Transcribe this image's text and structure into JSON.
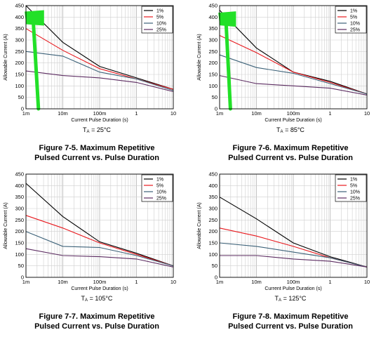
{
  "series_colors": [
    "#000000",
    "#e8191e",
    "#3c6178",
    "#5c2c61"
  ],
  "highlight_color": "#22e028",
  "chart_data": [
    {
      "type": "line",
      "caption_line1": "Figure 7-5. Maximum Repetitive",
      "caption_line2": "Pulsed Current vs. Pulse Duration",
      "condition_prefix": "T",
      "condition_sub": "A",
      "condition_value": " = 25°C",
      "xlabel": "Current Pulse Duration (s)",
      "ylabel": "Allowable Current (A)",
      "x_scale": "log",
      "xlim": [
        0.001,
        10
      ],
      "ylim": [
        0,
        450
      ],
      "x_ticks": [
        {
          "v": 0.001,
          "label": "1m"
        },
        {
          "v": 0.01,
          "label": "10m"
        },
        {
          "v": 0.1,
          "label": "100m"
        },
        {
          "v": 1,
          "label": "1"
        },
        {
          "v": 10,
          "label": "10"
        }
      ],
      "y_ticks": [
        "0",
        "50",
        "100",
        "150",
        "200",
        "250",
        "300",
        "350",
        "400",
        "450"
      ],
      "legend": {
        "placement": "top-right"
      },
      "grid": true,
      "highlight": {
        "description": "green marker stroke",
        "x": [
          0.0012,
          0.002
        ],
        "y": [
          0,
          430
        ]
      },
      "series": [
        {
          "name": "1%",
          "points": [
            [
              0.001,
              450
            ],
            [
              0.01,
              290
            ],
            [
              0.1,
              185
            ],
            [
              1,
              135
            ],
            [
              10,
              85
            ]
          ]
        },
        {
          "name": "5%",
          "points": [
            [
              0.001,
              350
            ],
            [
              0.01,
              255
            ],
            [
              0.1,
              175
            ],
            [
              1,
              130
            ],
            [
              10,
              85
            ]
          ]
        },
        {
          "name": "10%",
          "points": [
            [
              0.001,
              250
            ],
            [
              0.01,
              230
            ],
            [
              0.1,
              160
            ],
            [
              1,
              130
            ],
            [
              10,
              80
            ]
          ]
        },
        {
          "name": "25%",
          "points": [
            [
              0.001,
              165
            ],
            [
              0.01,
              145
            ],
            [
              0.1,
              135
            ],
            [
              1,
              115
            ],
            [
              10,
              75
            ]
          ]
        }
      ]
    },
    {
      "type": "line",
      "caption_line1": "Figure 7-6. Maximum Repetitive",
      "caption_line2": "Pulsed Current vs. Pulse Duration",
      "condition_prefix": "T",
      "condition_sub": "A",
      "condition_value": " = 85°C",
      "xlabel": "Current Pulse Duration (s)",
      "ylabel": "Allowable Current (A)",
      "x_scale": "log",
      "xlim": [
        0.001,
        10
      ],
      "ylim": [
        0,
        450
      ],
      "x_ticks": [
        {
          "v": 0.001,
          "label": "1m"
        },
        {
          "v": 0.01,
          "label": "10m"
        },
        {
          "v": 0.1,
          "label": "100m"
        },
        {
          "v": 1,
          "label": "1"
        },
        {
          "v": 10,
          "label": "10"
        }
      ],
      "y_ticks": [
        "0",
        "50",
        "100",
        "150",
        "200",
        "250",
        "300",
        "350",
        "400",
        "450"
      ],
      "legend": {
        "placement": "top-right"
      },
      "grid": true,
      "highlight": {
        "description": "green marker stroke",
        "x": [
          0.0012,
          0.0018
        ],
        "y": [
          0,
          425
        ]
      },
      "series": [
        {
          "name": "1%",
          "points": [
            [
              0.001,
              430
            ],
            [
              0.01,
              265
            ],
            [
              0.1,
              160
            ],
            [
              1,
              120
            ],
            [
              10,
              65
            ]
          ]
        },
        {
          "name": "5%",
          "points": [
            [
              0.001,
              320
            ],
            [
              0.01,
              245
            ],
            [
              0.1,
              160
            ],
            [
              1,
              115
            ],
            [
              10,
              65
            ]
          ]
        },
        {
          "name": "10%",
          "points": [
            [
              0.001,
              235
            ],
            [
              0.01,
              180
            ],
            [
              0.1,
              155
            ],
            [
              1,
              110
            ],
            [
              10,
              65
            ]
          ]
        },
        {
          "name": "25%",
          "points": [
            [
              0.001,
              145
            ],
            [
              0.01,
              110
            ],
            [
              0.1,
              100
            ],
            [
              1,
              90
            ],
            [
              10,
              60
            ]
          ]
        }
      ]
    },
    {
      "type": "line",
      "caption_line1": "Figure 7-7. Maximum Repetitive",
      "caption_line2": "Pulsed Current vs. Pulse Duration",
      "condition_prefix": "T",
      "condition_sub": "A",
      "condition_value": " = 105°C",
      "xlabel": "Current Pulse Duration (s)",
      "ylabel": "Allowable Current (A)",
      "x_scale": "log",
      "xlim": [
        0.001,
        10
      ],
      "ylim": [
        0,
        450
      ],
      "x_ticks": [
        {
          "v": 0.001,
          "label": "1m"
        },
        {
          "v": 0.01,
          "label": "10m"
        },
        {
          "v": 0.1,
          "label": "100m"
        },
        {
          "v": 1,
          "label": "1"
        },
        {
          "v": 10,
          "label": "10"
        }
      ],
      "y_ticks": [
        "0",
        "50",
        "100",
        "150",
        "200",
        "250",
        "300",
        "350",
        "400",
        "450"
      ],
      "legend": {
        "placement": "top-right"
      },
      "grid": true,
      "series": [
        {
          "name": "1%",
          "points": [
            [
              0.001,
              410
            ],
            [
              0.01,
              265
            ],
            [
              0.1,
              155
            ],
            [
              1,
              105
            ],
            [
              10,
              50
            ]
          ]
        },
        {
          "name": "5%",
          "points": [
            [
              0.001,
              270
            ],
            [
              0.01,
              215
            ],
            [
              0.1,
              150
            ],
            [
              1,
              100
            ],
            [
              10,
              50
            ]
          ]
        },
        {
          "name": "10%",
          "points": [
            [
              0.001,
              200
            ],
            [
              0.01,
              135
            ],
            [
              0.1,
              130
            ],
            [
              1,
              95
            ],
            [
              10,
              50
            ]
          ]
        },
        {
          "name": "25%",
          "points": [
            [
              0.001,
              125
            ],
            [
              0.01,
              95
            ],
            [
              0.1,
              90
            ],
            [
              1,
              80
            ],
            [
              10,
              45
            ]
          ]
        }
      ]
    },
    {
      "type": "line",
      "caption_line1": "Figure 7-8. Maximum Repetitive",
      "caption_line2": "Pulsed Current vs. Pulse Duration",
      "condition_prefix": "T",
      "condition_sub": "A",
      "condition_value": " = 125°C",
      "xlabel": "Current Pulse Duration (s)",
      "ylabel": "Allowable Current (A)",
      "x_scale": "log",
      "xlim": [
        0.001,
        10
      ],
      "ylim": [
        0,
        450
      ],
      "x_ticks": [
        {
          "v": 0.001,
          "label": "1m"
        },
        {
          "v": 0.01,
          "label": "10m"
        },
        {
          "v": 0.1,
          "label": "100m"
        },
        {
          "v": 1,
          "label": "1"
        },
        {
          "v": 10,
          "label": "10"
        }
      ],
      "y_ticks": [
        "0",
        "50",
        "100",
        "150",
        "200",
        "250",
        "300",
        "350",
        "400",
        "450"
      ],
      "legend": {
        "placement": "top-right"
      },
      "grid": true,
      "series": [
        {
          "name": "1%",
          "points": [
            [
              0.001,
              350
            ],
            [
              0.01,
              255
            ],
            [
              0.1,
              150
            ],
            [
              1,
              90
            ],
            [
              10,
              45
            ]
          ]
        },
        {
          "name": "5%",
          "points": [
            [
              0.001,
              215
            ],
            [
              0.01,
              180
            ],
            [
              0.1,
              135
            ],
            [
              1,
              85
            ],
            [
              10,
              45
            ]
          ]
        },
        {
          "name": "10%",
          "points": [
            [
              0.001,
              150
            ],
            [
              0.01,
              135
            ],
            [
              0.1,
              110
            ],
            [
              1,
              85
            ],
            [
              10,
              45
            ]
          ]
        },
        {
          "name": "25%",
          "points": [
            [
              0.001,
              95
            ],
            [
              0.01,
              95
            ],
            [
              0.1,
              80
            ],
            [
              1,
              70
            ],
            [
              10,
              45
            ]
          ]
        }
      ]
    }
  ]
}
